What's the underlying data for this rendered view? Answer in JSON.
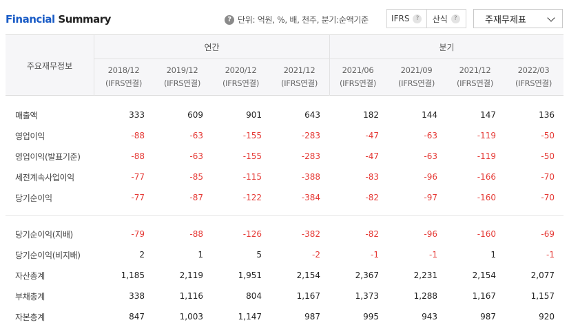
{
  "header": {
    "title_accent": "Financial",
    "title_rest": " Summary",
    "unit_text": "단위: 억원, %, 배, 천주, 분기:순액기준",
    "options": [
      "IFRS",
      "산식"
    ],
    "select_value": "주재무제표"
  },
  "table": {
    "corner_label": "주요재무정보",
    "groups": [
      "연간",
      "분기"
    ],
    "columns": [
      {
        "period": "2018/12",
        "basis": "(IFRS연결)"
      },
      {
        "period": "2019/12",
        "basis": "(IFRS연결)"
      },
      {
        "period": "2020/12",
        "basis": "(IFRS연결)"
      },
      {
        "period": "2021/12",
        "basis": "(IFRS연결)"
      },
      {
        "period": "2021/06",
        "basis": "(IFRS연결)"
      },
      {
        "period": "2021/09",
        "basis": "(IFRS연결)"
      },
      {
        "period": "2021/12",
        "basis": "(IFRS연결)"
      },
      {
        "period": "2022/03",
        "basis": "(IFRS연결)"
      }
    ],
    "rows": [
      {
        "label": "매출액",
        "values": [
          "333",
          "609",
          "901",
          "643",
          "182",
          "144",
          "147",
          "136"
        ]
      },
      {
        "label": "영업이익",
        "values": [
          "-88",
          "-63",
          "-155",
          "-283",
          "-47",
          "-63",
          "-119",
          "-50"
        ]
      },
      {
        "label": "영업이익(발표기준)",
        "values": [
          "-88",
          "-63",
          "-155",
          "-283",
          "-47",
          "-63",
          "-119",
          "-50"
        ]
      },
      {
        "label": "세전계속사업이익",
        "values": [
          "-77",
          "-85",
          "-115",
          "-388",
          "-83",
          "-96",
          "-166",
          "-70"
        ]
      },
      {
        "label": "당기순이익",
        "values": [
          "-77",
          "-87",
          "-122",
          "-384",
          "-82",
          "-97",
          "-160",
          "-70"
        ]
      },
      {
        "label": "당기순이익(지배)",
        "values": [
          "-79",
          "-88",
          "-126",
          "-382",
          "-82",
          "-96",
          "-160",
          "-69"
        ]
      },
      {
        "label": "당기순이익(비지배)",
        "values": [
          "2",
          "1",
          "5",
          "-2",
          "-1",
          "-1",
          "1",
          "-1"
        ]
      },
      {
        "label": "자산총계",
        "values": [
          "1,185",
          "2,119",
          "1,951",
          "2,154",
          "2,367",
          "2,231",
          "2,154",
          "2,077"
        ]
      },
      {
        "label": "부채총계",
        "values": [
          "338",
          "1,116",
          "804",
          "1,167",
          "1,373",
          "1,288",
          "1,167",
          "1,157"
        ]
      },
      {
        "label": "자본총계",
        "values": [
          "847",
          "1,003",
          "1,147",
          "987",
          "995",
          "943",
          "987",
          "920"
        ]
      }
    ]
  },
  "colors": {
    "accent": "#1a5cc6",
    "negative": "#e53935",
    "header_bg": "#f6f6f8"
  }
}
